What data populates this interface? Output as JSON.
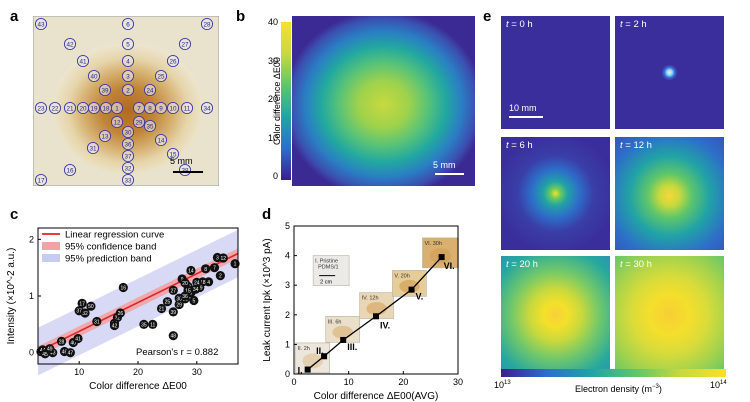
{
  "panels": {
    "a": {
      "label": "a",
      "scale_bar": "5 mm",
      "markers": [
        "43",
        "6",
        "28",
        "42",
        "5",
        "27",
        "41",
        "4",
        "26",
        "40",
        "3",
        "25",
        "39",
        "2",
        "24",
        "23",
        "22",
        "21",
        "20",
        "19",
        "18",
        "1",
        "7",
        "8",
        "9",
        "10",
        "11",
        "34",
        "12",
        "29",
        "35",
        "13",
        "30",
        "14",
        "36",
        "31",
        "15",
        "37",
        "16",
        "32",
        "38",
        "17",
        "33"
      ]
    },
    "b": {
      "label": "b",
      "colorbar_title": "Color difference ΔE00",
      "colorbar_ticks": [
        "40",
        "30",
        "20",
        "10",
        "0"
      ],
      "scale_bar": "5 mm"
    },
    "c": {
      "label": "c",
      "annotation": "Pearson's r = 0.882"
    },
    "d": {
      "label": "d",
      "scale_bar": "2 cm",
      "inset_labels": [
        "I. Pristine PDMS/1",
        "II. 2h",
        "III. 6h",
        "IV. 12h",
        "V. 20h",
        "VI. 30h"
      ]
    },
    "e": {
      "label": "e",
      "scale_bar": "10 mm",
      "times": [
        "t = 0 h",
        "t = 2 h",
        "t = 6 h",
        "t = 12 h",
        "t = 20 h",
        "t = 30 h"
      ],
      "colorbar_min": "10^13",
      "colorbar_max": "10^14",
      "colorbar_label": "Electron density (m^-3)"
    }
  },
  "chart_data": [
    {
      "id": "c",
      "type": "scatter",
      "xlabel": "Color difference ΔE00",
      "ylabel": "Intensity (×10^-2 a.u.)",
      "xlim": [
        3,
        37
      ],
      "ylim": [
        -0.2,
        2.2
      ],
      "xticks": [
        10,
        20,
        30
      ],
      "yticks": [
        0,
        1,
        2
      ],
      "legend": [
        "Linear regression curve",
        "95% confidence band",
        "95% prediction band"
      ],
      "legend_position": "top-left",
      "regression": {
        "x": [
          3,
          37
        ],
        "y": [
          0.02,
          1.75
        ]
      },
      "points": [
        {
          "id": "1",
          "x": 36.5,
          "y": 1.57
        },
        {
          "id": "2",
          "x": 34.0,
          "y": 1.36
        },
        {
          "id": "3",
          "x": 33.5,
          "y": 1.68
        },
        {
          "id": "4",
          "x": 32.0,
          "y": 1.25
        },
        {
          "id": "5",
          "x": 29.5,
          "y": 0.92
        },
        {
          "id": "6",
          "x": 29.0,
          "y": 1.06
        },
        {
          "id": "7",
          "x": 33.0,
          "y": 1.5
        },
        {
          "id": "8",
          "x": 31.5,
          "y": 1.48
        },
        {
          "id": "9",
          "x": 27.5,
          "y": 1.3
        },
        {
          "id": "10",
          "x": 28.0,
          "y": 0.95
        },
        {
          "id": "11",
          "x": 22.5,
          "y": 0.5
        },
        {
          "id": "12",
          "x": 34.5,
          "y": 1.67
        },
        {
          "id": "13",
          "x": 28.5,
          "y": 1.17
        },
        {
          "id": "14",
          "x": 29.0,
          "y": 1.45
        },
        {
          "id": "15",
          "x": 28.5,
          "y": 1.1
        },
        {
          "id": "16",
          "x": 17.5,
          "y": 1.15
        },
        {
          "id": "17",
          "x": 10.5,
          "y": 0.87
        },
        {
          "id": "18",
          "x": 31.0,
          "y": 1.25
        },
        {
          "id": "19",
          "x": 30.5,
          "y": 1.15
        },
        {
          "id": "20",
          "x": 28.0,
          "y": 1.23
        },
        {
          "id": "21",
          "x": 24.0,
          "y": 0.78
        },
        {
          "id": "22",
          "x": 16.5,
          "y": 0.62
        },
        {
          "id": "23",
          "x": 16.0,
          "y": 0.52
        },
        {
          "id": "24",
          "x": 30.0,
          "y": 1.24
        },
        {
          "id": "25",
          "x": 25.0,
          "y": 0.9
        },
        {
          "id": "26",
          "x": 17.0,
          "y": 0.7
        },
        {
          "id": "27",
          "x": 26.0,
          "y": 1.1
        },
        {
          "id": "28",
          "x": 7.0,
          "y": 0.2
        },
        {
          "id": "29",
          "x": 27.0,
          "y": 0.85
        },
        {
          "id": "30",
          "x": 27.0,
          "y": 0.96
        },
        {
          "id": "31",
          "x": 13.0,
          "y": 0.55
        },
        {
          "id": "32",
          "x": 11.0,
          "y": 0.7
        },
        {
          "id": "33",
          "x": 4.5,
          "y": 0.02
        },
        {
          "id": "34",
          "x": 29.8,
          "y": 1.12
        },
        {
          "id": "35",
          "x": 21.0,
          "y": 0.5
        },
        {
          "id": "36",
          "x": 28.0,
          "y": 1.0
        },
        {
          "id": "37",
          "x": 10.0,
          "y": 0.74
        },
        {
          "id": "38",
          "x": 3.5,
          "y": 0.02
        },
        {
          "id": "39",
          "x": 26.0,
          "y": 0.72
        },
        {
          "id": "40",
          "x": 9.0,
          "y": 0.18
        },
        {
          "id": "41",
          "x": 9.8,
          "y": 0.25
        },
        {
          "id": "42",
          "x": 16.0,
          "y": 0.48
        },
        {
          "id": "43",
          "x": 5.5,
          "y": 0.0
        },
        {
          "id": "44",
          "x": 3.8,
          "y": 0.05
        },
        {
          "id": "45",
          "x": 4.2,
          "y": -0.02
        },
        {
          "id": "46",
          "x": 7.5,
          "y": 0.02
        },
        {
          "id": "47",
          "x": 8.5,
          "y": 0.0
        },
        {
          "id": "48",
          "x": 26.0,
          "y": 0.3
        },
        {
          "id": "49",
          "x": 5.0,
          "y": 0.07
        },
        {
          "id": "50",
          "x": 12.0,
          "y": 0.82
        }
      ]
    },
    {
      "id": "d",
      "type": "line",
      "xlabel": "Color difference ΔE00(AVG)",
      "ylabel": "Leak current Ipk (×10^3 pA)",
      "xlim": [
        0,
        30
      ],
      "ylim": [
        0,
        5
      ],
      "xticks": [
        0,
        10,
        20,
        30
      ],
      "yticks": [
        0,
        1,
        2,
        3,
        4,
        5
      ],
      "points": [
        {
          "label": "I.",
          "x": 2.5,
          "y": 0.15
        },
        {
          "label": "II.",
          "x": 5.5,
          "y": 0.6
        },
        {
          "label": "III.",
          "x": 9.0,
          "y": 1.15
        },
        {
          "label": "IV.",
          "x": 15.0,
          "y": 1.95
        },
        {
          "label": "V.",
          "x": 21.5,
          "y": 2.85
        },
        {
          "label": "VI.",
          "x": 27.0,
          "y": 3.95
        }
      ]
    }
  ]
}
